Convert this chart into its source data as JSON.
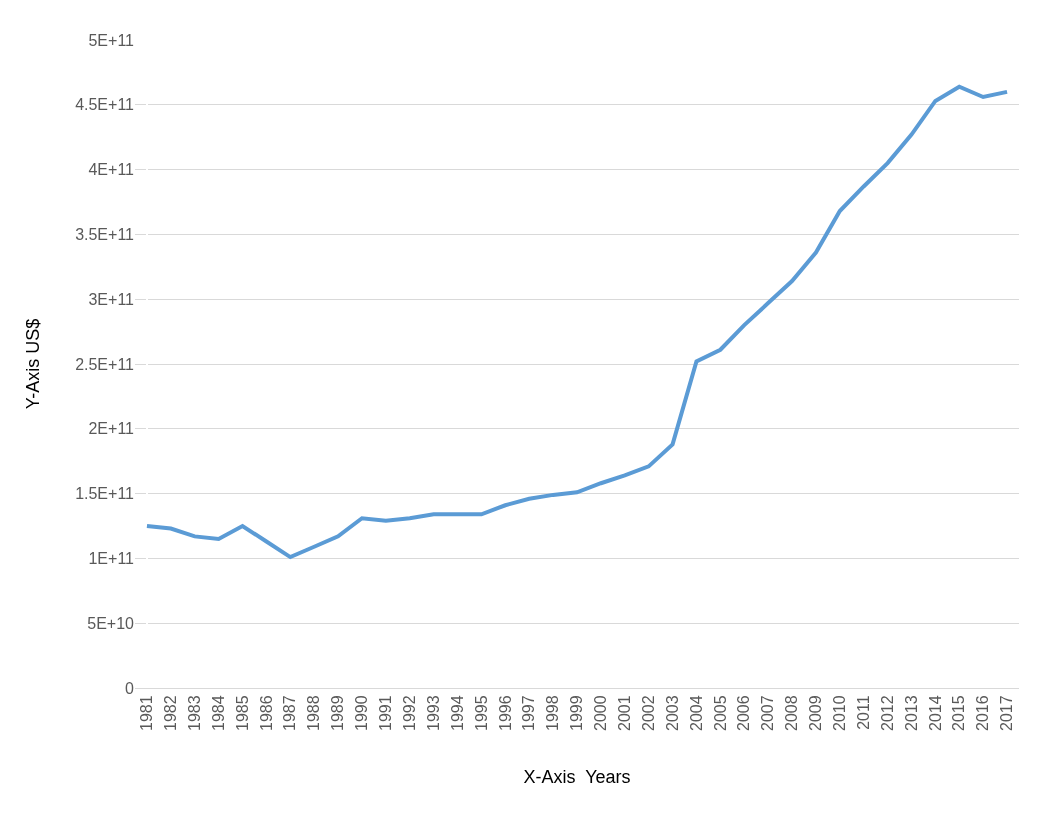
{
  "chart_data": {
    "type": "line",
    "xlabel": "X-Axis  Years",
    "ylabel": "Y-Axis US$",
    "categories": [
      "1981",
      "1982",
      "1983",
      "1984",
      "1985",
      "1986",
      "1987",
      "1988",
      "1989",
      "1990",
      "1991",
      "1992",
      "1993",
      "1994",
      "1995",
      "1996",
      "1997",
      "1998",
      "1999",
      "2000",
      "2001",
      "2002",
      "2003",
      "2004",
      "2005",
      "2006",
      "2007",
      "2008",
      "2009",
      "2010",
      "2011",
      "2012",
      "2013",
      "2014",
      "2015",
      "2016",
      "2017"
    ],
    "series": [
      {
        "color": "#5b9bd5",
        "values": [
          125000000000.0,
          123000000000.0,
          117000000000.0,
          115000000000.0,
          125000000000.0,
          113000000000.0,
          101000000000.0,
          109000000000.0,
          117000000000.0,
          131000000000.0,
          129000000000.0,
          131000000000.0,
          134000000000.0,
          134000000000.0,
          134000000000.0,
          141000000000.0,
          146000000000.0,
          149000000000.0,
          151000000000.0,
          158000000000.0,
          164000000000.0,
          171000000000.0,
          188000000000.0,
          252000000000.0,
          261000000000.0,
          280000000000.0,
          297000000000.0,
          314000000000.0,
          336000000000.0,
          368000000000.0,
          387000000000.0,
          405000000000.0,
          427000000000.0,
          453000000000.0,
          464000000000.0,
          456000000000.0,
          460000000000.0
        ]
      }
    ],
    "ylim": [
      0,
      500000000000.0
    ],
    "yticks": [
      {
        "value": 0,
        "label": "0"
      },
      {
        "value": 50000000000.0,
        "label": "5E+10"
      },
      {
        "value": 100000000000.0,
        "label": "1E+11"
      },
      {
        "value": 150000000000.0,
        "label": "1.5E+11"
      },
      {
        "value": 200000000000.0,
        "label": "2E+11"
      },
      {
        "value": 250000000000.0,
        "label": "2.5E+11"
      },
      {
        "value": 300000000000.0,
        "label": "3E+11"
      },
      {
        "value": 350000000000.0,
        "label": "3.5E+11"
      },
      {
        "value": 400000000000.0,
        "label": "4E+11"
      },
      {
        "value": 450000000000.0,
        "label": "4.5E+11"
      },
      {
        "value": 500000000000.0,
        "label": "5E+11"
      }
    ],
    "grid": "y",
    "line_style": "solid"
  }
}
